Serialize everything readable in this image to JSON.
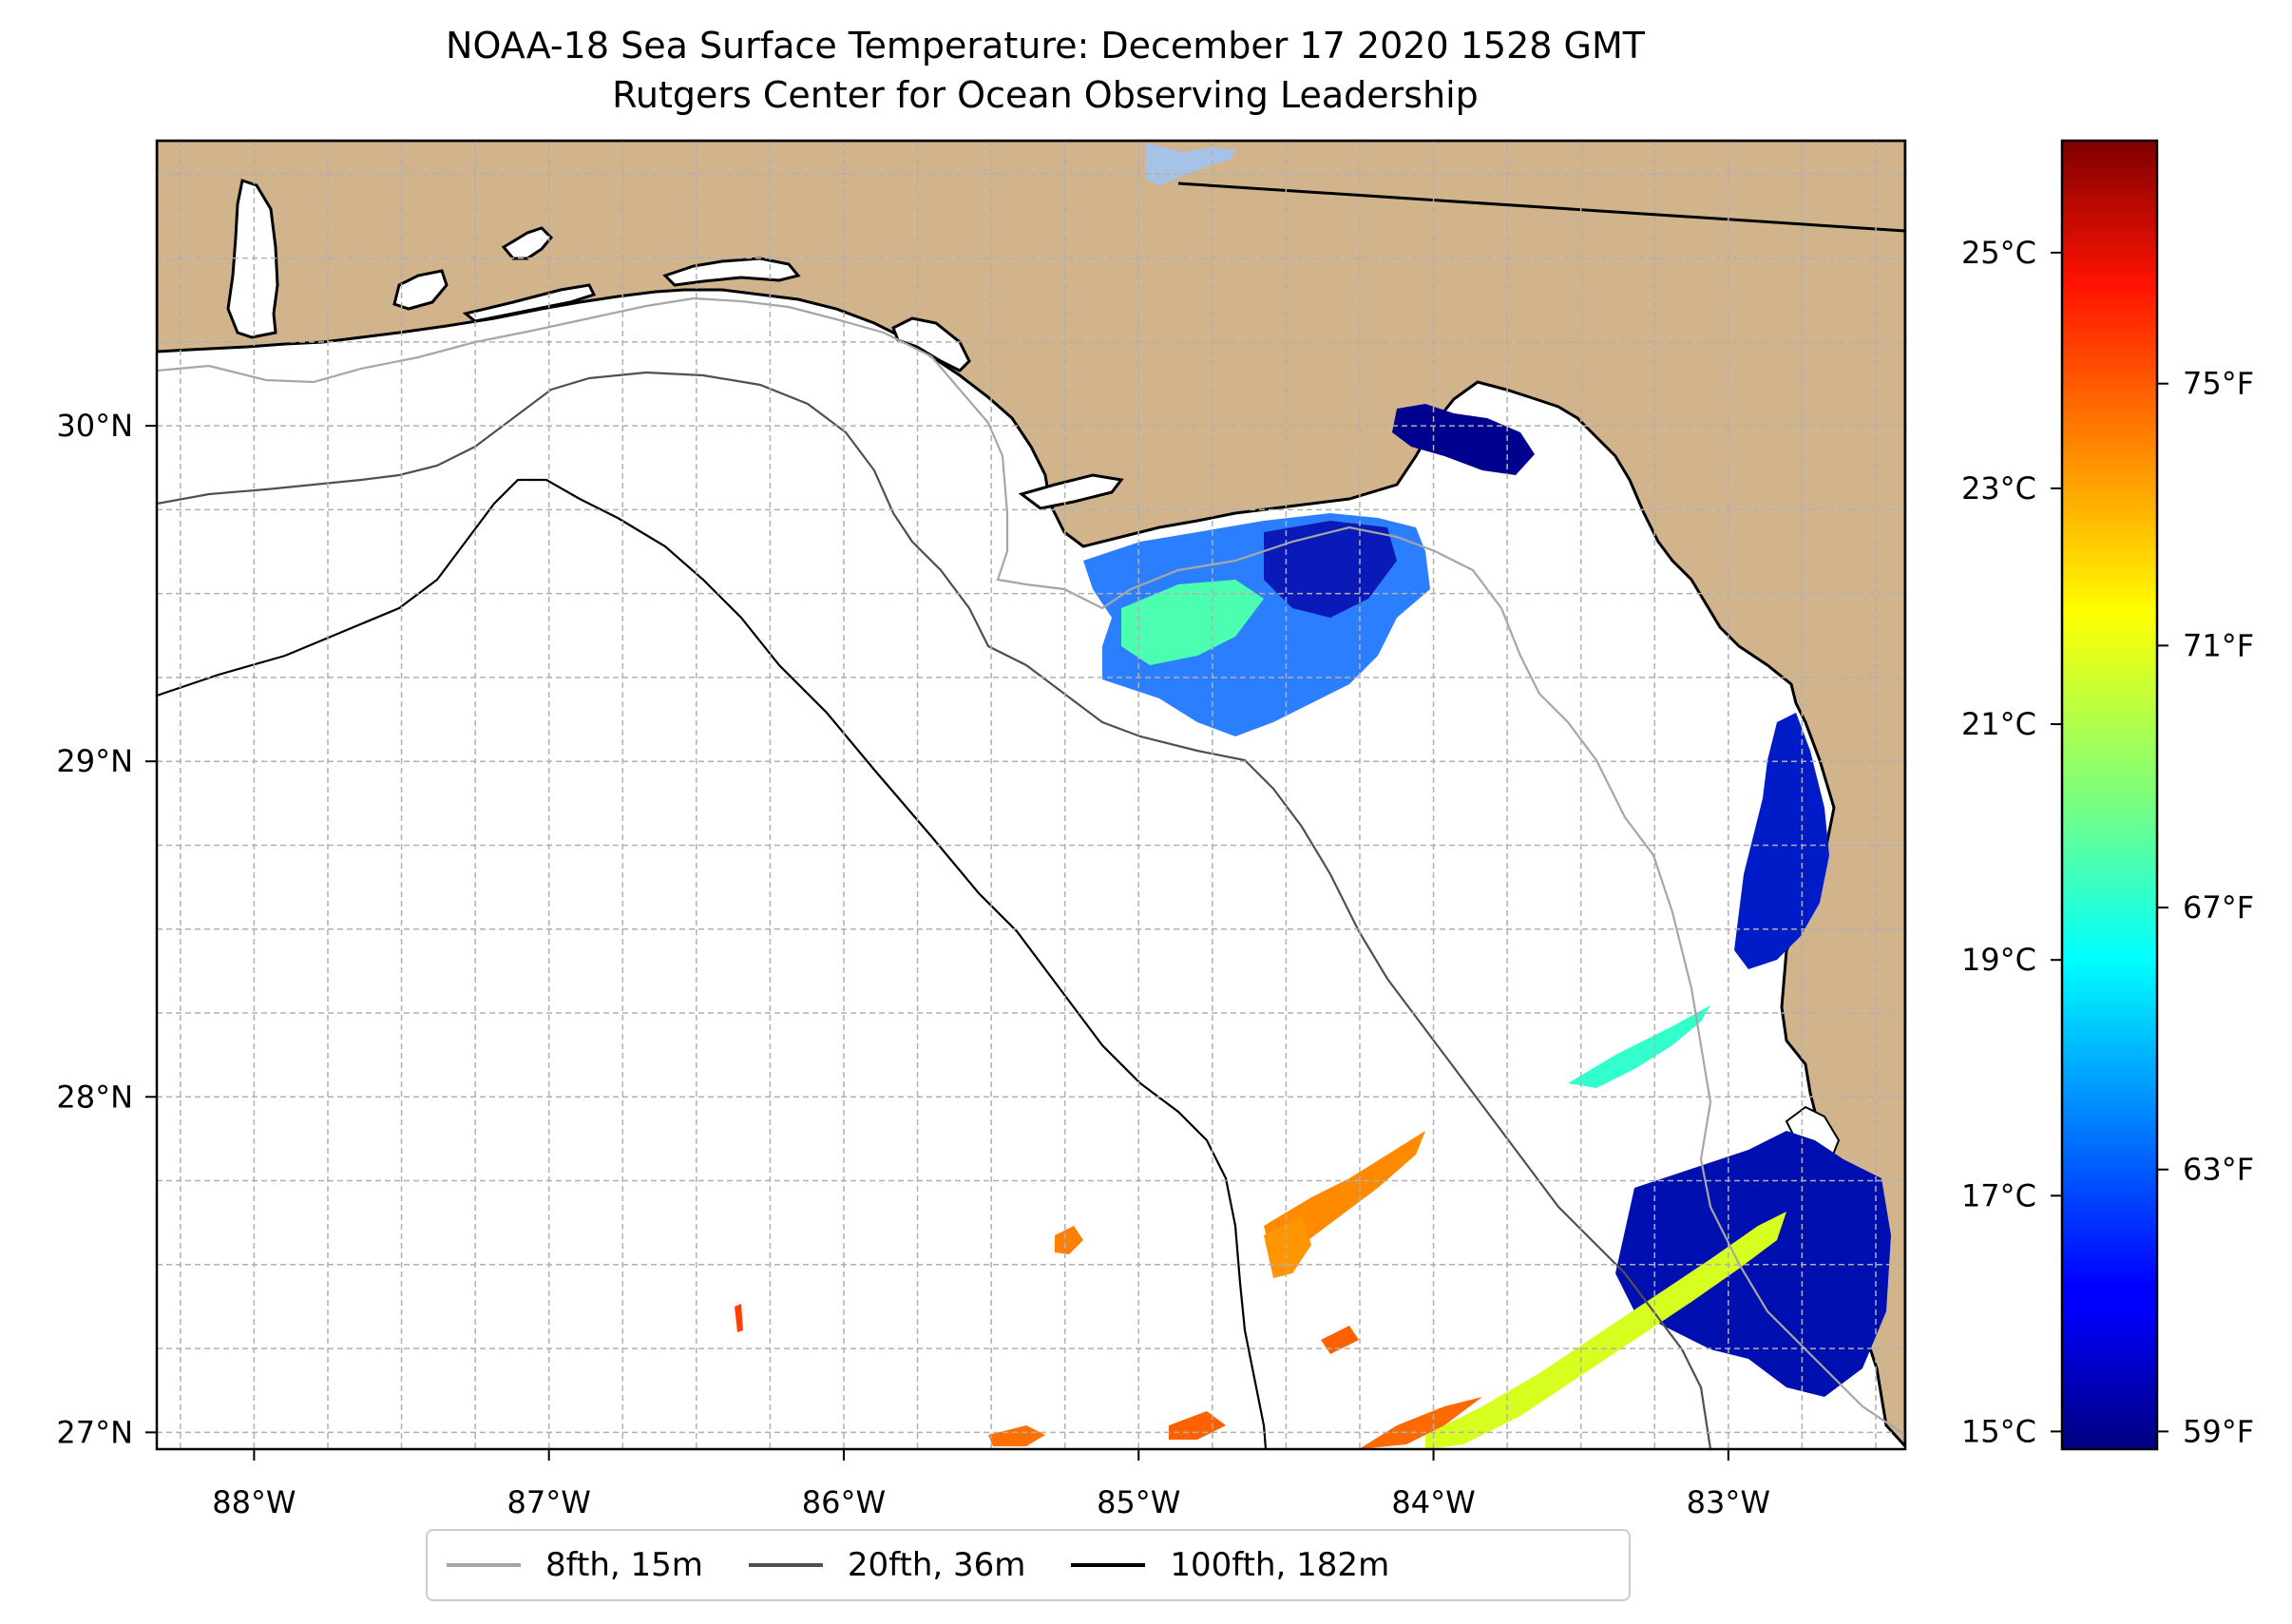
{
  "title": {
    "line1": "NOAA-18 Sea Surface Temperature: December 17 2020 1528 GMT",
    "line2": "Rutgers Center for Ocean Observing Leadership"
  },
  "map": {
    "lon_range": [
      -88.33,
      -82.4
    ],
    "lat_range": [
      26.95,
      30.85
    ],
    "lon_ticks": [
      {
        "value": -88,
        "label": "88°W"
      },
      {
        "value": -87,
        "label": "87°W"
      },
      {
        "value": -86,
        "label": "86°W"
      },
      {
        "value": -85,
        "label": "85°W"
      },
      {
        "value": -84,
        "label": "84°W"
      },
      {
        "value": -83,
        "label": "83°W"
      }
    ],
    "lat_ticks": [
      {
        "value": 27,
        "label": "27°N"
      },
      {
        "value": 28,
        "label": "28°N"
      },
      {
        "value": 29,
        "label": "29°N"
      },
      {
        "value": 30,
        "label": "30°N"
      }
    ],
    "colors": {
      "land": "#d2b48c",
      "ocean": "#ffffff",
      "grid": "#b0b0b0",
      "lake": "#a6c2e6"
    }
  },
  "colorbar": {
    "colormap": "jet",
    "celsius_ticks": [
      {
        "value": 15,
        "label": "15°C"
      },
      {
        "value": 17,
        "label": "17°C"
      },
      {
        "value": 19,
        "label": "19°C"
      },
      {
        "value": 21,
        "label": "21°C"
      },
      {
        "value": 23,
        "label": "23°C"
      },
      {
        "value": 25,
        "label": "25°C"
      }
    ],
    "fahrenheit_ticks": [
      {
        "value": 59,
        "label": "59°F"
      },
      {
        "value": 63,
        "label": "63°F"
      },
      {
        "value": 67,
        "label": "67°F"
      },
      {
        "value": 71,
        "label": "71°F"
      },
      {
        "value": 75,
        "label": "75°F"
      }
    ],
    "range_c": [
      14.85,
      25.95
    ]
  },
  "legend": {
    "items": [
      {
        "label": "8fth, 15m",
        "color": "#a6a6a6"
      },
      {
        "label": "20fth, 36m",
        "color": "#505050"
      },
      {
        "label": "100fth, 182m",
        "color": "#000000"
      }
    ]
  }
}
